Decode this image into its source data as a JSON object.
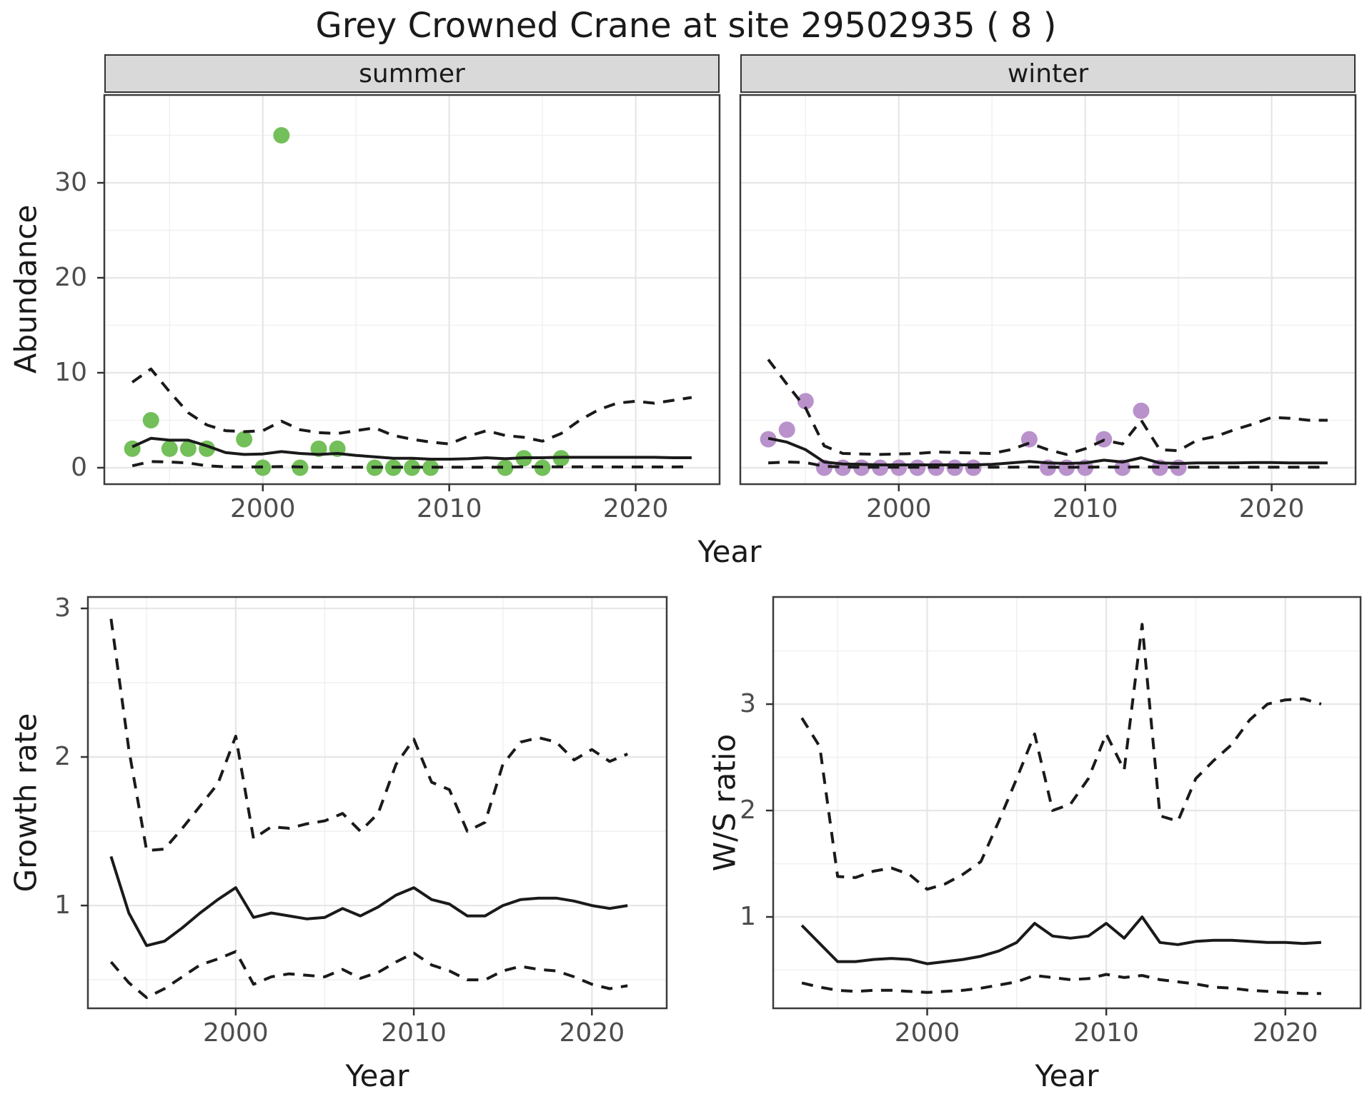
{
  "title": "Grey Crowned Crane at site 29502935 ( 8 )",
  "facets": [
    {
      "label": "summer"
    },
    {
      "label": "winter"
    }
  ],
  "axes": {
    "abundance_label": "Abundance",
    "year_label": "Year",
    "growth_label": "Growth rate",
    "ws_label": "W/S ratio"
  },
  "colors": {
    "summer_point": "#73bf59",
    "winter_point": "#b992cc",
    "line": "#1a1a1a",
    "grid_major": "#e6e6e6",
    "grid_minor": "#f1f1f1",
    "panel_border": "#3c3c3c",
    "strip_fill": "#d9d9d9",
    "tick_text": "#4d4d4d"
  },
  "chart_data": [
    {
      "type": "scatter",
      "panel": "abundance-summer",
      "facet": "summer",
      "xlabel": "Year",
      "ylabel": "Abundance",
      "xlim": [
        1991.5,
        2024.5
      ],
      "ylim": [
        -1.73,
        39.25
      ],
      "xticks": [
        2000,
        2010,
        2020
      ],
      "xminor": [
        1995,
        2005,
        2015
      ],
      "yticks": [
        0,
        10,
        20,
        30
      ],
      "yminor": [
        5,
        15,
        25,
        35
      ],
      "grid": true,
      "points": {
        "years": [
          1993,
          1994,
          1995,
          1996,
          1997,
          1999,
          2000,
          2001,
          2002,
          2003,
          2004,
          2006,
          2007,
          2008,
          2009,
          2013,
          2014,
          2015,
          2016
        ],
        "values": [
          2,
          5,
          2,
          2,
          2,
          3,
          0,
          35,
          0,
          2,
          2,
          0,
          0,
          0,
          0,
          0,
          1,
          0,
          1
        ]
      },
      "series": [
        {
          "name": "fit",
          "style": "solid",
          "years": [
            1993,
            1994,
            1995,
            1996,
            1997,
            1998,
            1999,
            2000,
            2001,
            2002,
            2003,
            2004,
            2005,
            2006,
            2007,
            2008,
            2009,
            2010,
            2011,
            2012,
            2013,
            2014,
            2015,
            2016,
            2017,
            2018,
            2019,
            2020,
            2021,
            2022,
            2023
          ],
          "values": [
            2.2,
            3.1,
            2.9,
            2.9,
            2.3,
            1.6,
            1.4,
            1.45,
            1.7,
            1.5,
            1.4,
            1.5,
            1.3,
            1.15,
            1.0,
            1.0,
            0.9,
            0.9,
            0.95,
            1.05,
            0.95,
            1.05,
            1.05,
            1.1,
            1.1,
            1.1,
            1.1,
            1.1,
            1.1,
            1.05,
            1.05
          ]
        },
        {
          "name": "upper_ci",
          "style": "dashed",
          "years": [
            1993,
            1994,
            1995,
            1996,
            1997,
            1998,
            1999,
            2000,
            2001,
            2002,
            2003,
            2004,
            2005,
            2006,
            2007,
            2008,
            2009,
            2010,
            2011,
            2012,
            2013,
            2014,
            2015,
            2016,
            2017,
            2018,
            2019,
            2020,
            2021,
            2022,
            2023
          ],
          "values": [
            9.0,
            10.4,
            8.0,
            5.8,
            4.5,
            3.9,
            3.8,
            3.9,
            4.9,
            4.0,
            3.7,
            3.6,
            3.9,
            4.2,
            3.4,
            3.0,
            2.7,
            2.5,
            3.3,
            3.9,
            3.4,
            3.2,
            2.8,
            3.6,
            5.0,
            6.1,
            6.8,
            7.0,
            6.8,
            7.1,
            7.4
          ]
        },
        {
          "name": "lower_ci",
          "style": "dashed",
          "years": [
            1993,
            1994,
            1995,
            1996,
            1997,
            1998,
            1999,
            2000,
            2001,
            2002,
            2003,
            2004,
            2005,
            2006,
            2007,
            2008,
            2009,
            2010,
            2011,
            2012,
            2013,
            2014,
            2015,
            2016,
            2017,
            2018,
            2019,
            2020,
            2021,
            2022,
            2023
          ],
          "values": [
            0.2,
            0.65,
            0.6,
            0.5,
            0.2,
            0.1,
            0.08,
            0.08,
            0.12,
            0.08,
            0.06,
            0.06,
            0.05,
            0.05,
            0.05,
            0.05,
            0.05,
            0.05,
            0.05,
            0.06,
            0.06,
            0.1,
            0.08,
            0.1,
            0.1,
            0.1,
            0.08,
            0.08,
            0.08,
            0.08,
            0.1
          ]
        }
      ]
    },
    {
      "type": "scatter",
      "panel": "abundance-winter",
      "facet": "winter",
      "xlabel": "Year",
      "ylabel": "Abundance",
      "xlim": [
        1991.5,
        2024.5
      ],
      "ylim": [
        -1.73,
        39.25
      ],
      "xticks": [
        2000,
        2010,
        2020
      ],
      "xminor": [
        1995,
        2005,
        2015
      ],
      "yticks": [
        0,
        10,
        20,
        30
      ],
      "yminor": [
        5,
        15,
        25,
        35
      ],
      "grid": true,
      "points": {
        "years": [
          1993,
          1994,
          1995,
          1996,
          1997,
          1998,
          1999,
          2000,
          2001,
          2002,
          2003,
          2004,
          2007,
          2008,
          2009,
          2010,
          2011,
          2012,
          2013,
          2014,
          2015
        ],
        "values": [
          3,
          4,
          7,
          0,
          0,
          0,
          0,
          0,
          0,
          0,
          0,
          0,
          3,
          0,
          0,
          0,
          3,
          0,
          6,
          0,
          0
        ]
      },
      "series": [
        {
          "name": "fit",
          "style": "solid",
          "years": [
            1993,
            1994,
            1995,
            1996,
            1997,
            1998,
            1999,
            2000,
            2001,
            2002,
            2003,
            2004,
            2005,
            2006,
            2007,
            2008,
            2009,
            2010,
            2011,
            2012,
            2013,
            2014,
            2015,
            2016,
            2017,
            2018,
            2019,
            2020,
            2021,
            2022,
            2023
          ],
          "values": [
            3.1,
            2.7,
            1.9,
            0.6,
            0.4,
            0.35,
            0.3,
            0.3,
            0.3,
            0.3,
            0.3,
            0.3,
            0.35,
            0.5,
            0.65,
            0.5,
            0.45,
            0.5,
            0.8,
            0.6,
            1.05,
            0.5,
            0.45,
            0.5,
            0.5,
            0.5,
            0.55,
            0.55,
            0.5,
            0.5,
            0.5
          ]
        },
        {
          "name": "upper_ci",
          "style": "dashed",
          "years": [
            1993,
            1994,
            1995,
            1996,
            1997,
            1998,
            1999,
            2000,
            2001,
            2002,
            2003,
            2004,
            2005,
            2006,
            2007,
            2008,
            2009,
            2010,
            2011,
            2012,
            2013,
            2014,
            2015,
            2016,
            2017,
            2018,
            2019,
            2020,
            2021,
            2022,
            2023
          ],
          "values": [
            11.4,
            8.8,
            6.3,
            2.3,
            1.5,
            1.45,
            1.4,
            1.45,
            1.5,
            1.65,
            1.6,
            1.55,
            1.5,
            1.9,
            2.6,
            1.9,
            1.4,
            2.0,
            2.9,
            2.5,
            5.0,
            1.9,
            1.8,
            2.9,
            3.3,
            4.0,
            4.6,
            5.3,
            5.2,
            5.0,
            5.0
          ]
        },
        {
          "name": "lower_ci",
          "style": "dashed",
          "years": [
            1993,
            1994,
            1995,
            1996,
            1997,
            1998,
            1999,
            2000,
            2001,
            2002,
            2003,
            2004,
            2005,
            2006,
            2007,
            2008,
            2009,
            2010,
            2011,
            2012,
            2013,
            2014,
            2015,
            2016,
            2017,
            2018,
            2019,
            2020,
            2021,
            2022,
            2023
          ],
          "values": [
            0.5,
            0.6,
            0.55,
            0.15,
            0.08,
            0.05,
            0.05,
            0.05,
            0.05,
            0.05,
            0.05,
            0.05,
            0.05,
            0.05,
            0.08,
            0.05,
            0.05,
            0.05,
            0.08,
            0.05,
            0.1,
            0.05,
            0.05,
            0.05,
            0.05,
            0.05,
            0.05,
            0.05,
            0.05,
            0.05,
            0.05
          ]
        }
      ]
    },
    {
      "type": "line",
      "panel": "growth-rate",
      "xlabel": "Year",
      "ylabel": "Growth rate",
      "xlim": [
        1991.7,
        2024.2
      ],
      "ylim": [
        0.308,
        3.077
      ],
      "xticks": [
        2000,
        2010,
        2020
      ],
      "xminor": [
        1995,
        2005,
        2015
      ],
      "yticks": [
        1,
        2,
        3
      ],
      "yminor": [
        0.5,
        1.5,
        2.5
      ],
      "grid": true,
      "series": [
        {
          "name": "median",
          "style": "solid",
          "years": [
            1993,
            1994,
            1995,
            1996,
            1997,
            1998,
            1999,
            2000,
            2001,
            2002,
            2003,
            2004,
            2005,
            2006,
            2007,
            2008,
            2009,
            2010,
            2011,
            2012,
            2013,
            2014,
            2015,
            2016,
            2017,
            2018,
            2019,
            2020,
            2021,
            2022
          ],
          "values": [
            1.33,
            0.95,
            0.73,
            0.76,
            0.85,
            0.95,
            1.04,
            1.12,
            0.92,
            0.95,
            0.93,
            0.91,
            0.92,
            0.98,
            0.93,
            0.99,
            1.07,
            1.12,
            1.04,
            1.01,
            0.93,
            0.93,
            1.0,
            1.04,
            1.05,
            1.05,
            1.03,
            1.0,
            0.98,
            1.0
          ]
        },
        {
          "name": "upper_ci",
          "style": "dashed",
          "years": [
            1993,
            1994,
            1995,
            1996,
            1997,
            1998,
            1999,
            2000,
            2001,
            2002,
            2003,
            2004,
            2005,
            2006,
            2007,
            2008,
            2009,
            2010,
            2011,
            2012,
            2013,
            2014,
            2015,
            2016,
            2017,
            2018,
            2019,
            2020,
            2021,
            2022
          ],
          "values": [
            2.93,
            2.05,
            1.37,
            1.38,
            1.52,
            1.67,
            1.82,
            2.14,
            1.45,
            1.53,
            1.52,
            1.55,
            1.57,
            1.62,
            1.5,
            1.62,
            1.95,
            2.12,
            1.83,
            1.78,
            1.5,
            1.56,
            1.95,
            2.1,
            2.13,
            2.1,
            1.98,
            2.05,
            1.97,
            2.02
          ]
        },
        {
          "name": "lower_ci",
          "style": "dashed",
          "years": [
            1993,
            1994,
            1995,
            1996,
            1997,
            1998,
            1999,
            2000,
            2001,
            2002,
            2003,
            2004,
            2005,
            2006,
            2007,
            2008,
            2009,
            2010,
            2011,
            2012,
            2013,
            2014,
            2015,
            2016,
            2017,
            2018,
            2019,
            2020,
            2021,
            2022
          ],
          "values": [
            0.62,
            0.48,
            0.38,
            0.44,
            0.52,
            0.6,
            0.64,
            0.69,
            0.47,
            0.52,
            0.54,
            0.53,
            0.52,
            0.57,
            0.51,
            0.55,
            0.62,
            0.68,
            0.6,
            0.56,
            0.5,
            0.5,
            0.56,
            0.59,
            0.57,
            0.56,
            0.52,
            0.47,
            0.44,
            0.46
          ]
        }
      ]
    },
    {
      "type": "line",
      "panel": "ws-ratio",
      "xlabel": "Year",
      "ylabel": "W/S ratio",
      "xlim": [
        1991.4,
        2024.2
      ],
      "ylim": [
        0.141,
        4.007
      ],
      "xticks": [
        2000,
        2010,
        2020
      ],
      "xminor": [
        1995,
        2005,
        2015
      ],
      "yticks": [
        1,
        2,
        3
      ],
      "yminor": [
        0.5,
        1.5,
        2.5,
        3.5
      ],
      "grid": true,
      "series": [
        {
          "name": "median",
          "style": "solid",
          "years": [
            1993,
            1994,
            1995,
            1996,
            1997,
            1998,
            1999,
            2000,
            2001,
            2002,
            2003,
            2004,
            2005,
            2006,
            2007,
            2008,
            2009,
            2010,
            2011,
            2012,
            2013,
            2014,
            2015,
            2016,
            2017,
            2018,
            2019,
            2020,
            2021,
            2022
          ],
          "values": [
            0.92,
            0.75,
            0.58,
            0.58,
            0.6,
            0.61,
            0.6,
            0.56,
            0.58,
            0.6,
            0.63,
            0.68,
            0.76,
            0.94,
            0.82,
            0.8,
            0.82,
            0.94,
            0.8,
            1.0,
            0.76,
            0.74,
            0.77,
            0.78,
            0.78,
            0.77,
            0.76,
            0.76,
            0.75,
            0.76
          ]
        },
        {
          "name": "upper_ci",
          "style": "dashed",
          "years": [
            1993,
            1994,
            1995,
            1996,
            1997,
            1998,
            1999,
            2000,
            2001,
            2002,
            2003,
            2004,
            2005,
            2006,
            2007,
            2008,
            2009,
            2010,
            2011,
            2012,
            2013,
            2014,
            2015,
            2016,
            2017,
            2018,
            2019,
            2020,
            2021,
            2022
          ],
          "values": [
            2.87,
            2.6,
            1.38,
            1.37,
            1.43,
            1.46,
            1.4,
            1.26,
            1.31,
            1.4,
            1.52,
            1.9,
            2.3,
            2.72,
            2.0,
            2.06,
            2.3,
            2.72,
            2.38,
            3.75,
            1.95,
            1.9,
            2.3,
            2.47,
            2.62,
            2.85,
            3.0,
            3.04,
            3.05,
            3.0
          ]
        },
        {
          "name": "lower_ci",
          "style": "dashed",
          "years": [
            1993,
            1994,
            1995,
            1996,
            1997,
            1998,
            1999,
            2000,
            2001,
            2002,
            2003,
            2004,
            2005,
            2006,
            2007,
            2008,
            2009,
            2010,
            2011,
            2012,
            2013,
            2014,
            2015,
            2016,
            2017,
            2018,
            2019,
            2020,
            2021,
            2022
          ],
          "values": [
            0.38,
            0.34,
            0.31,
            0.3,
            0.31,
            0.31,
            0.3,
            0.29,
            0.3,
            0.31,
            0.33,
            0.36,
            0.39,
            0.45,
            0.43,
            0.41,
            0.42,
            0.46,
            0.43,
            0.45,
            0.41,
            0.39,
            0.37,
            0.34,
            0.33,
            0.31,
            0.3,
            0.29,
            0.28,
            0.28
          ]
        }
      ]
    }
  ]
}
